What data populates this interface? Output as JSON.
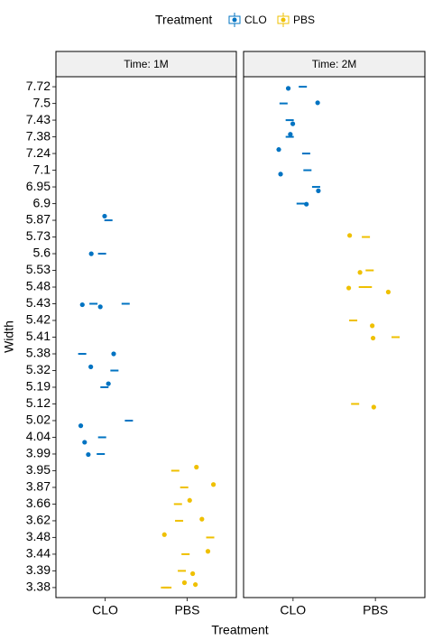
{
  "chart_data": {
    "type": "strip",
    "legend_title": "Treatment",
    "x_label": "Treatment",
    "y_label": "Width",
    "categories": [
      "CLO",
      "PBS"
    ],
    "series": [
      {
        "name": "CLO",
        "color": "#0073C2"
      },
      {
        "name": "PBS",
        "color": "#EFC000"
      }
    ],
    "yticks": [
      3.38,
      3.39,
      3.44,
      3.48,
      3.62,
      3.66,
      3.87,
      3.95,
      3.99,
      4.04,
      5.02,
      5.12,
      5.19,
      5.32,
      5.38,
      5.41,
      5.42,
      5.43,
      5.48,
      5.53,
      5.6,
      5.73,
      5.87,
      6.9,
      6.95,
      7.1,
      7.24,
      7.38,
      7.43,
      7.5,
      7.72
    ],
    "facets": [
      {
        "label": "Time: 1M",
        "series": [
          {
            "values": [
              5.87,
              5.6,
              5.43,
              5.43,
              5.38,
              5.32,
              5.19,
              5.02,
              4.04,
              3.99
            ]
          },
          {
            "values": [
              3.95,
              3.87,
              3.66,
              3.62,
              3.48,
              3.44,
              3.39,
              3.38,
              3.38
            ]
          }
        ]
      },
      {
        "label": "Time: 2M",
        "series": [
          {
            "values": [
              7.72,
              7.5,
              7.43,
              7.38,
              7.24,
              7.1,
              6.95,
              6.9
            ]
          },
          {
            "values": [
              5.73,
              5.53,
              5.48,
              5.48,
              5.42,
              5.41,
              5.12
            ]
          }
        ]
      }
    ]
  }
}
